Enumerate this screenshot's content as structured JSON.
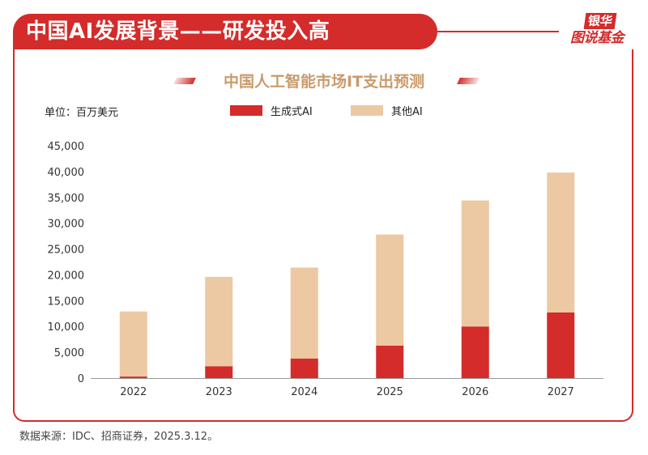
{
  "header": {
    "title": "中国AI发展背景——研发投入高",
    "logo_top": "银华",
    "logo_bottom": "图说基金"
  },
  "chart_data": {
    "type": "bar",
    "stacked": true,
    "title": "中国人工智能市场IT支出预测",
    "unit_label": "单位：百万美元",
    "categories": [
      "2022",
      "2023",
      "2024",
      "2025",
      "2026",
      "2027"
    ],
    "series": [
      {
        "name": "生成式AI",
        "color": "#d42b2b",
        "values": [
          300,
          2300,
          3800,
          6300,
          10000,
          12700
        ]
      },
      {
        "name": "其他AI",
        "color": "#ecc9a3",
        "values": [
          12600,
          17300,
          17600,
          21500,
          24400,
          27100
        ]
      }
    ],
    "ylim": [
      0,
      45000
    ],
    "yticks": [
      "0",
      "5,000",
      "10,000",
      "15,000",
      "20,000",
      "25,000",
      "30,000",
      "35,000",
      "40,000",
      "45,000"
    ],
    "ytick_values": [
      0,
      5000,
      10000,
      15000,
      20000,
      25000,
      30000,
      35000,
      40000,
      45000
    ],
    "grid": false,
    "legend": "top-center"
  },
  "footer": {
    "source": "数据来源：IDC、招商证券，2025.3.12。"
  }
}
